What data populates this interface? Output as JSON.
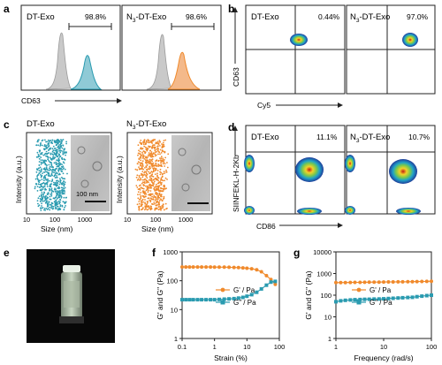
{
  "panels": {
    "a": {
      "letter": "a",
      "left": {
        "title": "DT-Exo",
        "percent": "98.8%"
      },
      "right": {
        "title_prefix": "N",
        "title_sub": "3",
        "title_suffix": "-DT-Exo",
        "percent": "98.6%"
      },
      "xlabel": "CD63"
    },
    "b": {
      "letter": "b",
      "left": {
        "title": "DT-Exo",
        "percent": "0.44%"
      },
      "right": {
        "title_prefix": "N",
        "title_sub": "3",
        "title_suffix": "-DT-Exo",
        "percent": "97.0%"
      },
      "xlabel": "Cy5",
      "ylabel": "CD63"
    },
    "c": {
      "letter": "c",
      "left": {
        "title": "DT-Exo"
      },
      "right": {
        "title_prefix": "N",
        "title_sub": "3",
        "title_suffix": "-DT-Exo"
      },
      "xlabel": "Size (nm)",
      "ylabel": "Intensity (a.u.)",
      "scalebar": "100 nm",
      "xticks": [
        "10",
        "100",
        "1000"
      ]
    },
    "d": {
      "letter": "d",
      "left": {
        "title": "DT-Exo",
        "percent": "11.1%"
      },
      "right": {
        "title_prefix": "N",
        "title_sub": "3",
        "title_suffix": "-DT-Exo",
        "percent": "10.7%"
      },
      "xlabel": "CD86",
      "ylabel": "SIINFEKL-H-2Kb"
    },
    "e": {
      "letter": "e"
    },
    "f": {
      "letter": "f"
    },
    "g": {
      "letter": "g"
    }
  },
  "colors": {
    "teal": "#2a9bb0",
    "orange": "#f08a2c",
    "gray": "#a8a8a8"
  },
  "chart_data": [
    {
      "id": "f",
      "type": "line",
      "xlabel": "Strain (%)",
      "ylabel": "G' and G\" (Pa)",
      "xscale": "log",
      "yscale": "log",
      "xlim": [
        0.1,
        100
      ],
      "ylim": [
        1,
        1000
      ],
      "xticks": [
        "0.1",
        "1",
        "10",
        "100"
      ],
      "yticks": [
        "1",
        "10",
        "100",
        "1000"
      ],
      "legend_position": "center-right",
      "series": [
        {
          "name": "G' / Pa",
          "color": "#f08a2c",
          "marker": "circle",
          "x": [
            0.1,
            0.13,
            0.17,
            0.22,
            0.3,
            0.4,
            0.55,
            0.75,
            1,
            1.4,
            2,
            2.8,
            4,
            5.5,
            7.5,
            10,
            14,
            20,
            28,
            40,
            55,
            75
          ],
          "y": [
            300,
            300,
            300,
            300,
            300,
            300,
            300,
            300,
            298,
            296,
            295,
            293,
            290,
            285,
            280,
            272,
            260,
            240,
            205,
            150,
            110,
            75
          ]
        },
        {
          "name": "G\" / Pa",
          "color": "#2a9bb0",
          "marker": "square",
          "x": [
            0.1,
            0.13,
            0.17,
            0.22,
            0.3,
            0.4,
            0.55,
            0.75,
            1,
            1.4,
            2,
            2.8,
            4,
            5.5,
            7.5,
            10,
            14,
            20,
            28,
            40,
            55,
            75
          ],
          "y": [
            22,
            22,
            22,
            22,
            22,
            22,
            22,
            22,
            22,
            22.5,
            23,
            23.5,
            24,
            25,
            26.5,
            29,
            33,
            40,
            52,
            70,
            90,
            95
          ]
        }
      ]
    },
    {
      "id": "g",
      "type": "line",
      "xlabel": "Frequency (rad/s)",
      "ylabel": "G' and G\" (Pa)",
      "xscale": "log",
      "yscale": "log",
      "xlim": [
        1,
        100
      ],
      "ylim": [
        1,
        10000
      ],
      "xticks": [
        "1",
        "10",
        "100"
      ],
      "yticks": [
        "1",
        "10",
        "100",
        "1000",
        "10000"
      ],
      "legend_position": "center-right",
      "series": [
        {
          "name": "G' / Pa",
          "color": "#f08a2c",
          "marker": "circle",
          "x": [
            1,
            1.26,
            1.58,
            2,
            2.5,
            3.2,
            4,
            5,
            6.3,
            8,
            10,
            12.6,
            15.8,
            20,
            25,
            32,
            40,
            50,
            63,
            80,
            100
          ],
          "y": [
            380,
            382,
            385,
            388,
            390,
            392,
            395,
            398,
            400,
            402,
            405,
            408,
            410,
            412,
            415,
            418,
            420,
            425,
            430,
            435,
            440
          ]
        },
        {
          "name": "G\" / Pa",
          "color": "#2a9bb0",
          "marker": "square",
          "x": [
            1,
            1.26,
            1.58,
            2,
            2.5,
            3.2,
            4,
            5,
            6.3,
            8,
            10,
            12.6,
            15.8,
            20,
            25,
            32,
            40,
            50,
            63,
            80,
            100
          ],
          "y": [
            50,
            55,
            58,
            60,
            62,
            63,
            64,
            65,
            66,
            67,
            68,
            70,
            72,
            74,
            76,
            78,
            80,
            85,
            90,
            95,
            100
          ]
        }
      ]
    }
  ]
}
